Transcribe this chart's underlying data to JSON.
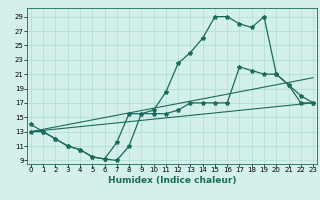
{
  "xlabel": "Humidex (Indice chaleur)",
  "bg_color": "#d4f0eb",
  "line_color": "#1a6b5a",
  "grid_color": "#b0ddd6",
  "x_ticks": [
    0,
    1,
    2,
    3,
    4,
    5,
    6,
    7,
    8,
    9,
    10,
    11,
    12,
    13,
    14,
    15,
    16,
    17,
    18,
    19,
    20,
    21,
    22,
    23
  ],
  "y_ticks": [
    9,
    11,
    13,
    15,
    17,
    19,
    21,
    23,
    25,
    27,
    29
  ],
  "xlim": [
    -0.3,
    23.3
  ],
  "ylim": [
    8.5,
    30.2
  ],
  "curve1_x": [
    0,
    1,
    2,
    3,
    4,
    5,
    6,
    7,
    8,
    9,
    10,
    11,
    12,
    13,
    14,
    15,
    16,
    17,
    18,
    19,
    20,
    21,
    22,
    23
  ],
  "curve1_y": [
    14,
    13,
    12,
    11,
    10.5,
    9.5,
    9.2,
    9,
    11,
    15.5,
    16,
    18.5,
    22.5,
    24,
    26,
    29,
    29,
    28,
    27.5,
    29,
    21,
    19.5,
    18,
    17
  ],
  "curve2_x": [
    0,
    1,
    2,
    3,
    4,
    5,
    6,
    7,
    8,
    9,
    10,
    11,
    12,
    13,
    14,
    15,
    16,
    17,
    18,
    19,
    20,
    21,
    22,
    23
  ],
  "curve2_y": [
    13,
    13,
    12,
    11,
    10.5,
    9.5,
    9.2,
    11.5,
    15.5,
    15.5,
    15.5,
    15.5,
    16,
    17,
    17,
    17,
    17,
    22,
    21.5,
    21,
    21,
    19.5,
    17,
    17
  ],
  "line3_x": [
    0,
    23
  ],
  "line3_y": [
    13,
    17
  ],
  "line4_x": [
    0,
    23
  ],
  "line4_y": [
    13,
    20.5
  ],
  "tick_fontsize": 5.0,
  "xlabel_fontsize": 6.5
}
